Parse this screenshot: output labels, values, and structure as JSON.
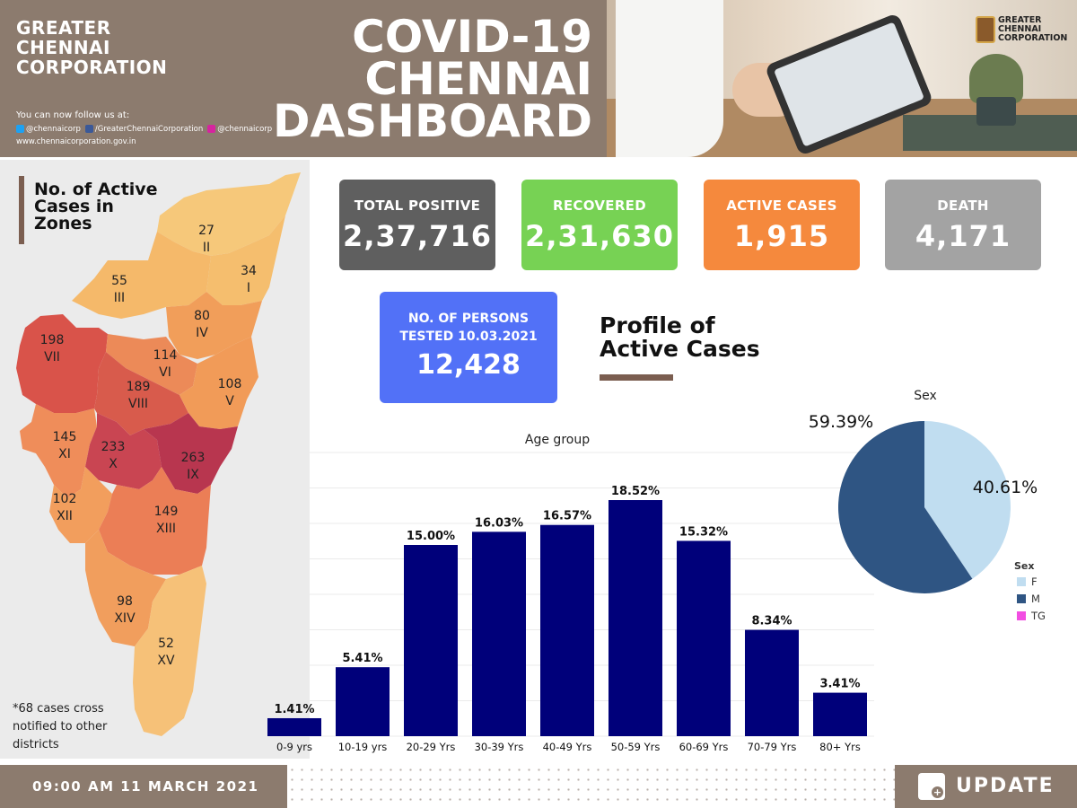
{
  "header": {
    "org_lines": [
      "GREATER",
      "CHENNAI",
      "CORPORATION"
    ],
    "follow_text": "You can now follow us at:",
    "twitter": "@chennaicorp",
    "facebook": "/GreaterChennaiCorporation",
    "instagram": "@chennaicorp",
    "website": "www.chennaicorporation.gov.in",
    "title_lines": [
      "COVID-19",
      "CHENNAI",
      "DASHBOARD"
    ],
    "logo_lines": [
      "GREATER",
      "CHENNAI",
      "CORPORATION"
    ]
  },
  "colors": {
    "header_brown": "#8c7b6e",
    "total_positive": "#5f5f5f",
    "recovered": "#77d254",
    "active": "#f5893d",
    "death": "#a3a3a3",
    "tested": "#5271f7",
    "bar": "#00007a",
    "pie_f": "#c0ddf0",
    "pie_m": "#2f5583",
    "pie_tg": "#f24ee2"
  },
  "kpis": {
    "total_positive": {
      "label": "TOTAL POSITIVE",
      "value": "2,37,716"
    },
    "recovered": {
      "label": "RECOVERED",
      "value": "2,31,630"
    },
    "active": {
      "label": "ACTIVE CASES",
      "value": "1,915"
    },
    "death": {
      "label": "DEATH",
      "value": "4,171"
    },
    "tested": {
      "label_lines": [
        "NO. OF PERSONS",
        "TESTED 10.03.2021"
      ],
      "value": "12,428"
    }
  },
  "map": {
    "title_lines": [
      "No. of Active",
      "Cases in",
      "Zones"
    ],
    "zones": [
      {
        "count": "27",
        "zone": "II"
      },
      {
        "count": "34",
        "zone": "I"
      },
      {
        "count": "55",
        "zone": "III"
      },
      {
        "count": "80",
        "zone": "IV"
      },
      {
        "count": "198",
        "zone": "VII"
      },
      {
        "count": "114",
        "zone": "VI"
      },
      {
        "count": "189",
        "zone": "VIII"
      },
      {
        "count": "108",
        "zone": "V"
      },
      {
        "count": "145",
        "zone": "XI"
      },
      {
        "count": "233",
        "zone": "X"
      },
      {
        "count": "263",
        "zone": "IX"
      },
      {
        "count": "102",
        "zone": "XII"
      },
      {
        "count": "149",
        "zone": "XIII"
      },
      {
        "count": "98",
        "zone": "XIV"
      },
      {
        "count": "52",
        "zone": "XV"
      }
    ],
    "note_lines": [
      "*68 cases cross",
      "notified to other",
      "districts"
    ]
  },
  "profile": {
    "title_lines": [
      "Profile of",
      "Active Cases"
    ]
  },
  "chart_data": [
    {
      "type": "bar",
      "title": "Age group",
      "categories": [
        "0-9 yrs",
        "10-19 yrs",
        "20-29 Yrs",
        "30-39 Yrs",
        "40-49 Yrs",
        "50-59 Yrs",
        "60-69 Yrs",
        "70-79 Yrs",
        "80+ Yrs"
      ],
      "values": [
        1.41,
        5.41,
        15.0,
        16.03,
        16.57,
        18.52,
        15.32,
        8.34,
        3.41
      ],
      "data_labels": [
        "1.41%",
        "5.41%",
        "15.00%",
        "16.03%",
        "16.57%",
        "18.52%",
        "15.32%",
        "8.34%",
        "3.41%"
      ],
      "ylim": [
        0,
        20
      ],
      "grid": true
    },
    {
      "type": "pie",
      "title": "Sex",
      "labels": [
        "F",
        "M",
        "TG"
      ],
      "values": [
        40.61,
        59.39,
        0
      ],
      "data_labels": [
        "40.61%",
        "59.39%",
        ""
      ],
      "legend_title": "Sex",
      "legend_position": "bottom-right"
    }
  ],
  "footer": {
    "datetime": "09:00 AM 11 MARCH 2021",
    "update_label": "UPDATE",
    "update_icon": "plus-icon"
  }
}
